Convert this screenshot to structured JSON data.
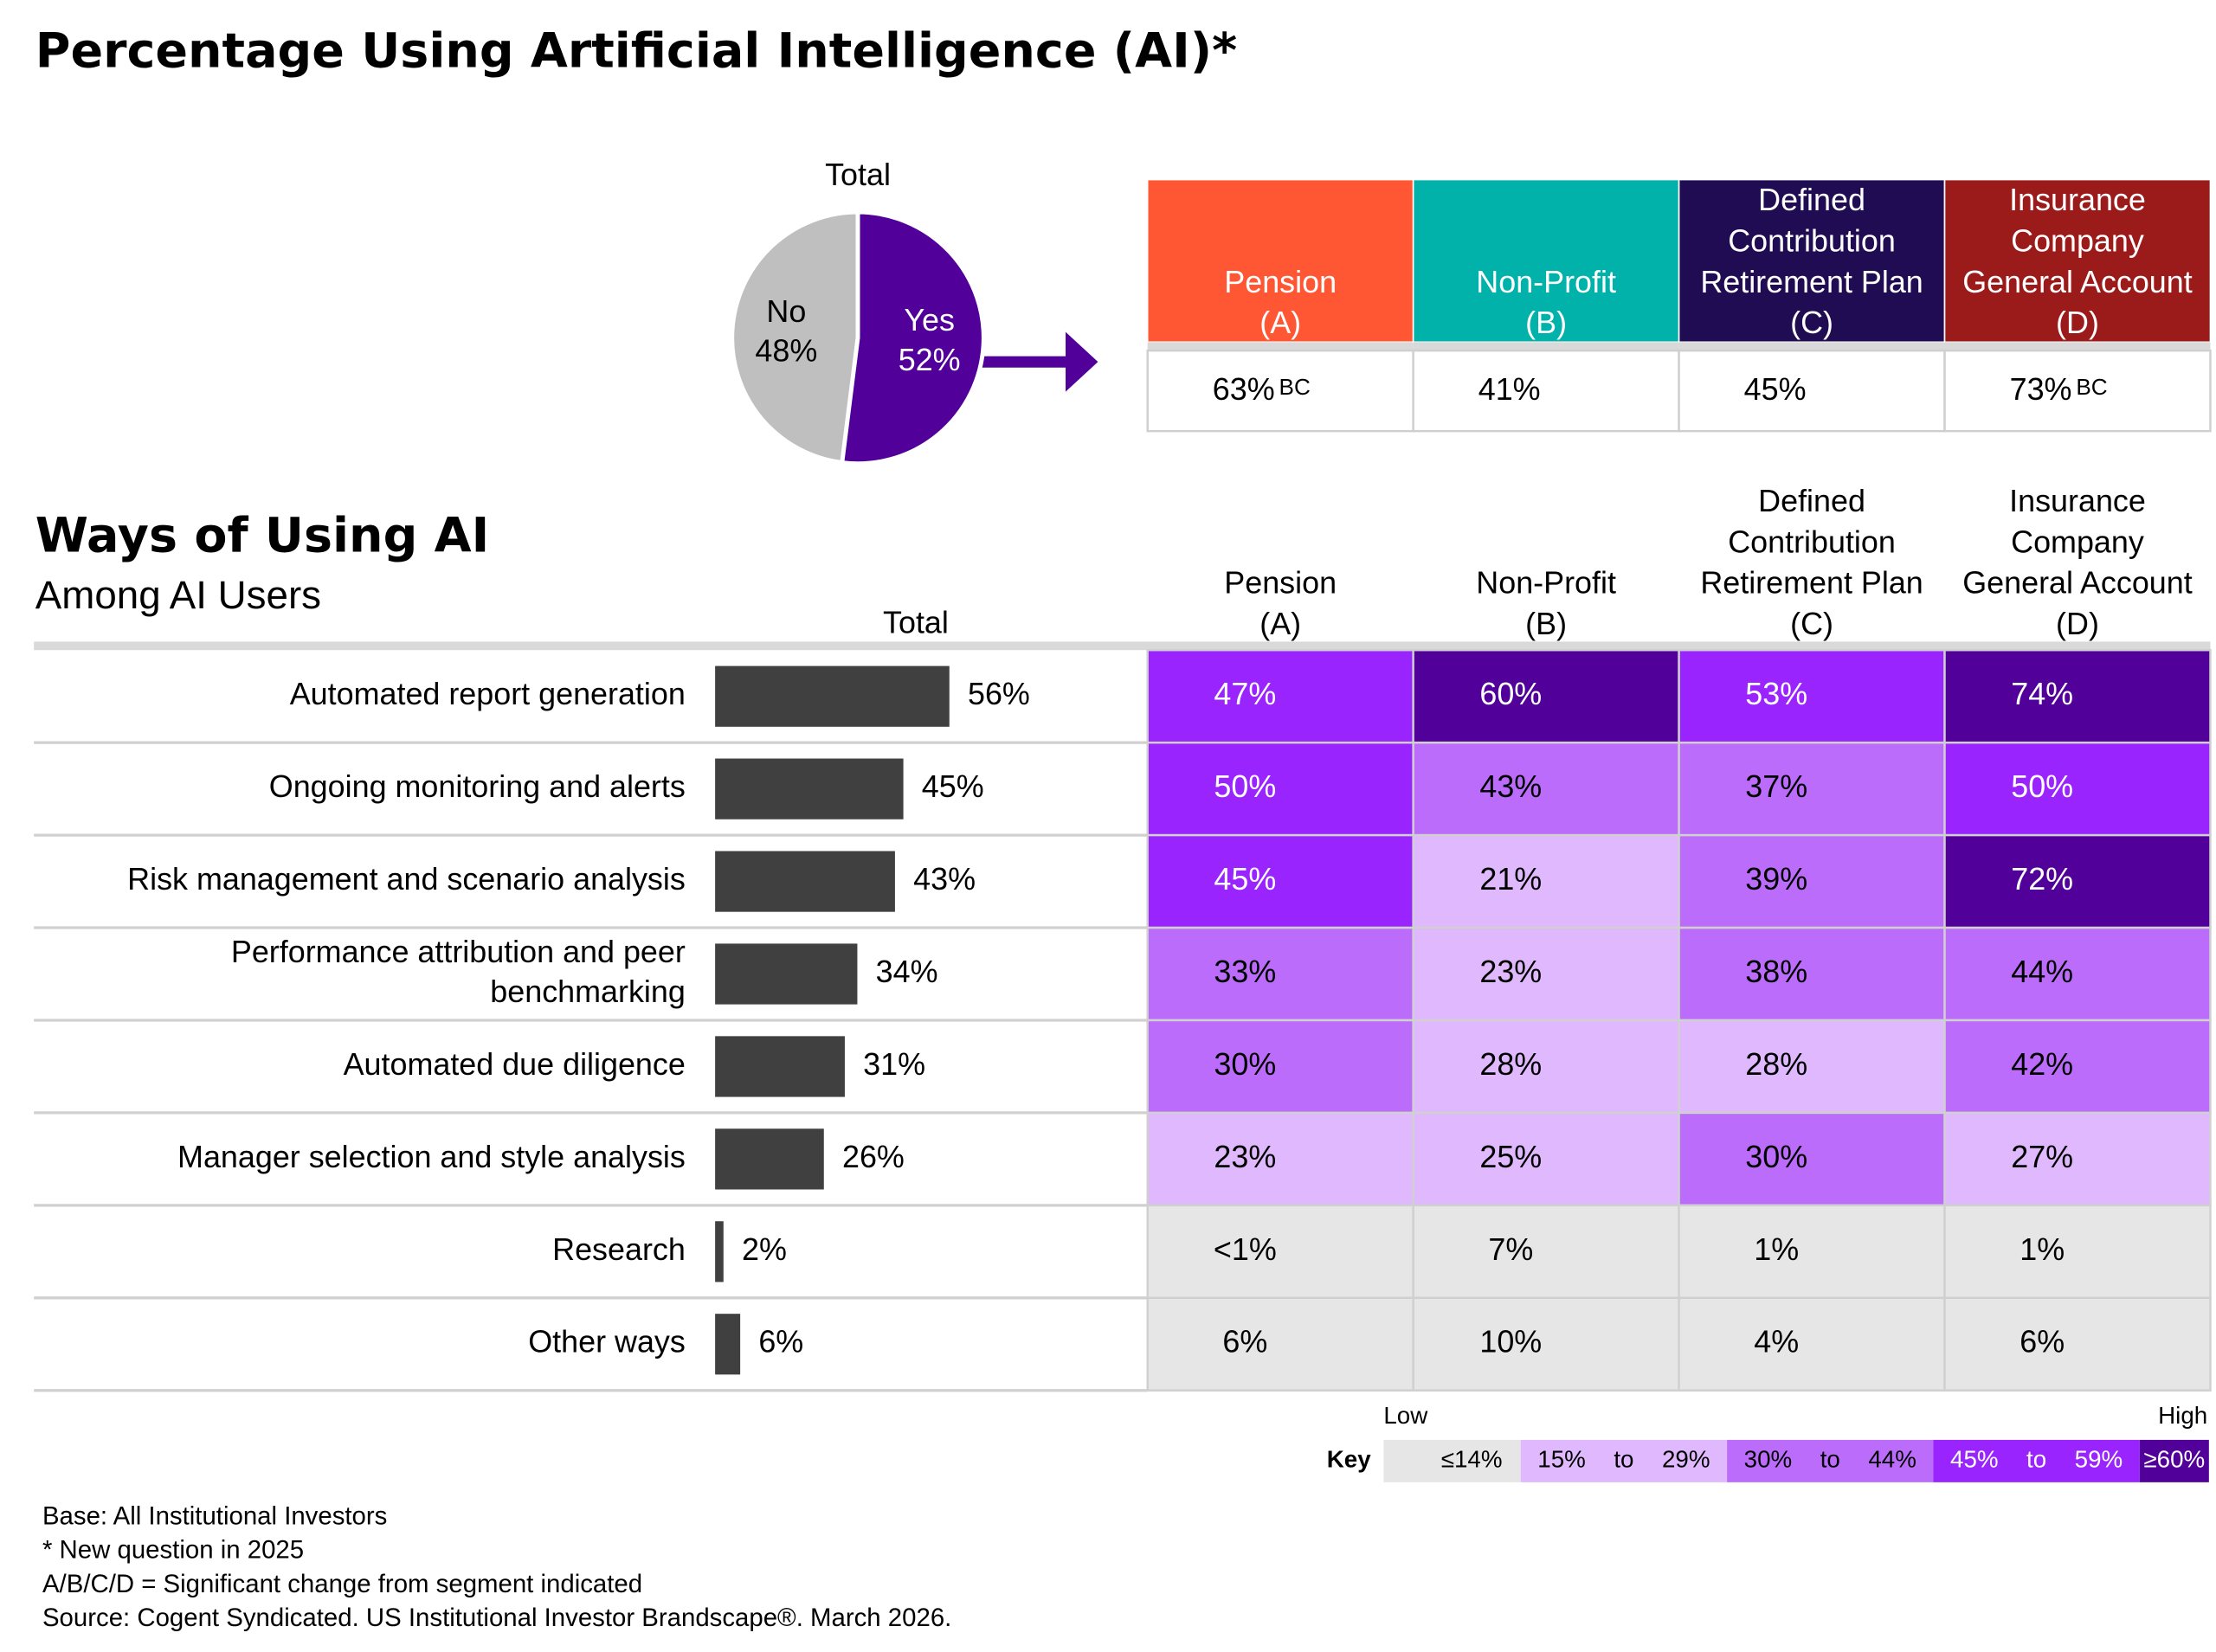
{
  "title": "Percentage Using Artificial Intelligence (AI)*",
  "chart_data": [
    {
      "type": "pie",
      "title": "Total",
      "categories": [
        "No",
        "Yes"
      ],
      "values": [
        48,
        52
      ],
      "value_labels": [
        "48%",
        "52%"
      ],
      "colors": [
        "#bfbfbf",
        "#52009a"
      ],
      "label_colors": [
        "#000000",
        "#ffffff"
      ]
    },
    {
      "type": "bar",
      "title": "Ways of Using AI",
      "subtitle": "Among AI Users",
      "column_title": "Total",
      "categories": [
        "Automated report generation",
        "Ongoing monitoring and alerts",
        "Risk management and scenario analysis",
        [
          "Performance attribution and peer",
          "benchmarking"
        ],
        "Automated due diligence",
        "Manager selection and style analysis",
        "Research",
        "Other ways"
      ],
      "values": [
        56,
        45,
        43,
        34,
        31,
        26,
        2,
        6
      ],
      "value_labels": [
        "56%",
        "45%",
        "43%",
        "34%",
        "31%",
        "26%",
        "2%",
        "6%"
      ],
      "color": "#404040"
    },
    {
      "type": "heatmap",
      "values": [
        [
          47,
          60,
          53,
          74
        ],
        [
          50,
          43,
          37,
          50
        ],
        [
          45,
          21,
          39,
          72
        ],
        [
          33,
          23,
          38,
          44
        ],
        [
          30,
          28,
          28,
          42
        ],
        [
          23,
          25,
          30,
          27
        ],
        [
          0.5,
          7,
          1,
          1
        ],
        [
          6,
          10,
          4,
          6
        ]
      ],
      "value_labels": [
        [
          "47%",
          "60%",
          "53%",
          "74%"
        ],
        [
          "50%",
          "43%",
          "37%",
          "50%"
        ],
        [
          "45%",
          "21%",
          "39%",
          "72%"
        ],
        [
          "33%",
          "23%",
          "38%",
          "44%"
        ],
        [
          "30%",
          "28%",
          "28%",
          "42%"
        ],
        [
          "23%",
          "25%",
          "30%",
          "27%"
        ],
        [
          "<1%",
          "7%",
          "1%",
          "1%"
        ],
        [
          "6%",
          "10%",
          "4%",
          "6%"
        ]
      ]
    }
  ],
  "segments": [
    {
      "name": [
        "Pension",
        "(A)"
      ],
      "color": "#ff5733"
    },
    {
      "name": [
        "Non-Profit",
        "(B)"
      ],
      "color": "#00b2a9"
    },
    {
      "name": [
        "Defined",
        "Contribution",
        "Retirement Plan",
        "(C)"
      ],
      "color": "#200c52"
    },
    {
      "name": [
        "Insurance",
        "Company",
        "General Account",
        "(D)"
      ],
      "color": "#9b1a1a"
    }
  ],
  "segment_table": {
    "values": [
      63,
      41,
      45,
      73
    ],
    "value_labels": [
      "63%",
      "41%",
      "45%",
      "73%"
    ],
    "significance": [
      "BC",
      null,
      null,
      "BC"
    ]
  },
  "key": {
    "title": "Key",
    "low": "Low",
    "high": "High",
    "bins": [
      {
        "label": "≤14%",
        "high": 14,
        "color": "#e6e6e6",
        "text_color": "#000000"
      },
      {
        "low": 15,
        "low_label": "15%",
        "sep": "to",
        "high": 29,
        "high_label": "29%",
        "color": "#dfb8fd",
        "text_color": "#000000"
      },
      {
        "low": 30,
        "low_label": "30%",
        "sep": "to",
        "high": 44,
        "high_label": "44%",
        "color": "#bc6cfb",
        "text_color": "#000000"
      },
      {
        "low": 45,
        "low_label": "45%",
        "sep": "to",
        "high": 59,
        "high_label": "59%",
        "color": "#9a24fd",
        "text_color": "#ffffff"
      },
      {
        "low": 60,
        "label": "≥60%",
        "color": "#52009a",
        "text_color": "#ffffff"
      }
    ]
  },
  "footnotes": [
    "Base: All Institutional Investors",
    "* New question in 2025",
    "A/B/C/D = Significant change from segment indicated",
    "Source: Cogent Syndicated. US Institutional Investor Brandscape®. March 2026."
  ]
}
